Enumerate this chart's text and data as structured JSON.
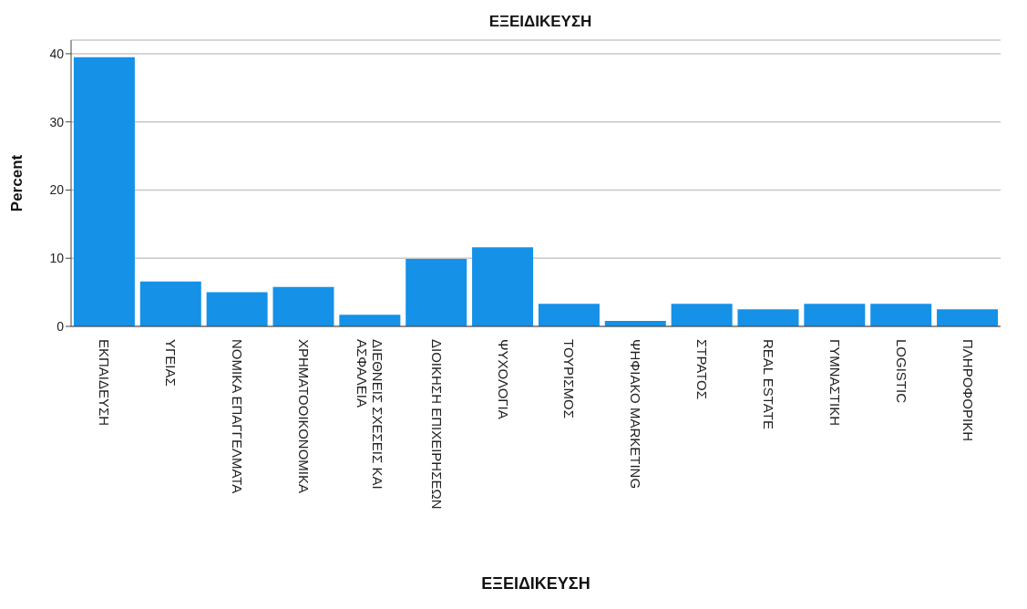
{
  "chart_data": {
    "type": "bar",
    "title": "ΕΞΕΙΔΙΚΕΥΣΗ",
    "xlabel": "ΕΞΕΙΔΙΚΕΥΣΗ",
    "ylabel": "Percent",
    "categories": [
      "ΕΚΠΑΙΔΕΥΣΗ",
      "ΥΓΕΙΑΣ",
      "ΝΟΜΙΚΑ ΕΠΑΓΓΕΛΜΑΤΑ",
      "ΧΡΗΜΑΤΟΟΙΚΟΝΟΜΙΚΑ",
      "ΔΙΕΘΝΕΙΣ ΣΧΕΣΕΙΣ ΚΑΙ ΑΣΦΑΛΕΙΑ",
      "ΔΙΟΙΚΗΣΗ ΕΠΙΧΕΙΡΗΣΕΩΝ",
      "ΨΥΧΟΛΟΓΙΑ",
      "ΤΟΥΡΙΣΜΟΣ",
      "ΨΗΦΙΑΚΟ MARKETING",
      "ΣΤΡΑΤΟΣ",
      "REAL ESTATE",
      "ΓΥΜΝΑΣΤΙΚΗ",
      "LOGISTIC",
      "ΠΛΗΡΟΦΟΡΙΚΗ"
    ],
    "values": [
      39.5,
      6.6,
      5.0,
      5.8,
      1.7,
      9.9,
      11.6,
      3.3,
      0.8,
      3.3,
      2.5,
      3.3,
      3.3,
      2.5
    ],
    "color": "#1591e8",
    "ylim": [
      0,
      42
    ],
    "yticks": [
      0,
      10,
      20,
      30,
      40
    ],
    "grid": "y"
  }
}
